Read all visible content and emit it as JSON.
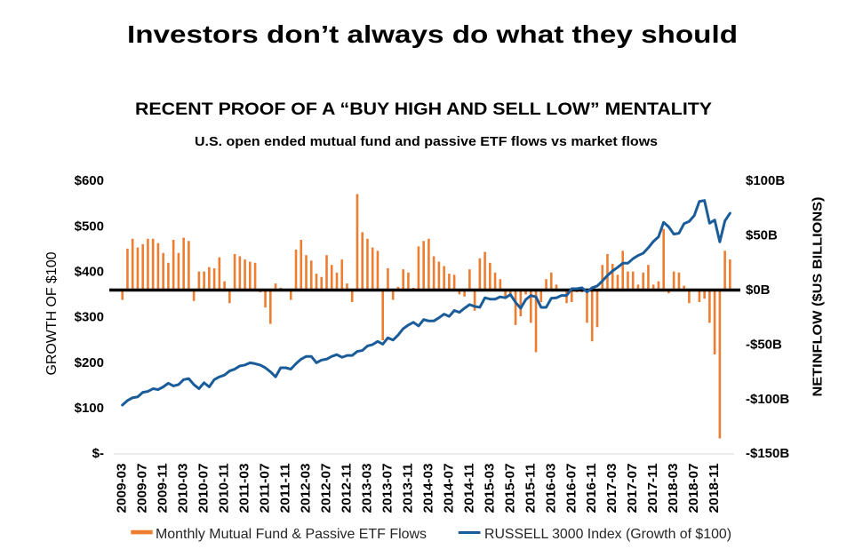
{
  "page": {
    "title": "Investors don’t always do what they should"
  },
  "chart_data": {
    "type": "bar",
    "title": "RECENT PROOF OF A “BUY HIGH AND SELL LOW” MENTALITY",
    "subtitle": "U.S. open ended mutual fund and passive ETF flows vs market flows",
    "xlabel": "",
    "grid": false,
    "categories": [
      "2009-03",
      "2009-04",
      "2009-05",
      "2009-06",
      "2009-07",
      "2009-08",
      "2009-09",
      "2009-10",
      "2009-11",
      "2009-12",
      "2010-01",
      "2010-02",
      "2010-03",
      "2010-04",
      "2010-05",
      "2010-06",
      "2010-07",
      "2010-08",
      "2010-09",
      "2010-10",
      "2010-11",
      "2010-12",
      "2011-01",
      "2011-02",
      "2011-03",
      "2011-04",
      "2011-05",
      "2011-06",
      "2011-07",
      "2011-08",
      "2011-09",
      "2011-10",
      "2011-11",
      "2011-12",
      "2012-01",
      "2012-02",
      "2012-03",
      "2012-04",
      "2012-05",
      "2012-06",
      "2012-07",
      "2012-08",
      "2012-09",
      "2012-10",
      "2012-11",
      "2012-12",
      "2013-01",
      "2013-02",
      "2013-03",
      "2013-04",
      "2013-05",
      "2013-06",
      "2013-07",
      "2013-08",
      "2013-09",
      "2013-10",
      "2013-11",
      "2013-12",
      "2014-01",
      "2014-02",
      "2014-03",
      "2014-04",
      "2014-05",
      "2014-06",
      "2014-07",
      "2014-08",
      "2014-09",
      "2014-10",
      "2014-11",
      "2014-12",
      "2015-01",
      "2015-02",
      "2015-03",
      "2015-04",
      "2015-05",
      "2015-06",
      "2015-07",
      "2015-08",
      "2015-09",
      "2015-10",
      "2015-11",
      "2015-12",
      "2016-01",
      "2016-02",
      "2016-03",
      "2016-04",
      "2016-05",
      "2016-06",
      "2016-07",
      "2016-08",
      "2016-09",
      "2016-10",
      "2016-11",
      "2016-12",
      "2017-01",
      "2017-02",
      "2017-03",
      "2017-04",
      "2017-05",
      "2017-06",
      "2017-07",
      "2017-08",
      "2017-09",
      "2017-10",
      "2017-11",
      "2017-12",
      "2018-01",
      "2018-02",
      "2018-03",
      "2018-04",
      "2018-05",
      "2018-06",
      "2018-07",
      "2018-08",
      "2018-09",
      "2018-10",
      "2018-11",
      "2018-12",
      "2019-01",
      "2019-02"
    ],
    "x_tick_labels": [
      "2009-03",
      "2009-07",
      "2009-11",
      "2010-03",
      "2010-07",
      "2010-11",
      "2011-03",
      "2011-07",
      "2011-11",
      "2012-03",
      "2012-07",
      "2012-11",
      "2013-03",
      "2013-07",
      "2013-11",
      "2014-03",
      "2014-07",
      "2014-11",
      "2015-03",
      "2015-07",
      "2015-11",
      "2016-03",
      "2016-07",
      "2016-11",
      "2017-03",
      "2017-07",
      "2017-11",
      "2018-03",
      "2018-07",
      "2018-11"
    ],
    "x_tick_every_n_months": 4,
    "y_left": {
      "label": "GROWTH OF $100",
      "range": [
        0,
        600
      ],
      "ticks": [
        600,
        500,
        400,
        300,
        200,
        100,
        0
      ],
      "tick_labels": [
        "$600",
        "$500",
        "$400",
        "$300",
        "$200",
        "$100",
        "$-"
      ]
    },
    "y_right": {
      "label": "NETINFLOW ($US BILLIONS)",
      "range": [
        -150,
        100
      ],
      "ticks": [
        100,
        50,
        0,
        -50,
        -100,
        -150
      ],
      "tick_labels": [
        "$100B",
        "$50B",
        "$0B",
        "-$50B",
        "-$100B",
        "-$150B"
      ]
    },
    "reference_line": {
      "axis": "right",
      "value": 0,
      "color": "#000000"
    },
    "axis_line_color": "#D9D9D9",
    "legend": {
      "position": "bottom"
    },
    "series": [
      {
        "name": "Monthly Mutual Fund & Passive ETF Flows",
        "type": "bar",
        "axis": "right",
        "unit": "$B",
        "color": "#ED7D31",
        "values": [
          -9,
          38,
          47,
          39,
          42,
          47,
          47,
          43,
          34,
          25,
          46,
          34,
          48,
          45,
          -10,
          17,
          17,
          21,
          20,
          30,
          8,
          -12,
          33,
          31,
          28,
          26,
          25,
          -2,
          -16,
          -31,
          6,
          2,
          -1,
          -9,
          37,
          46,
          32,
          27,
          15,
          12,
          32,
          23,
          16,
          28,
          6,
          -11,
          88,
          53,
          47,
          39,
          36,
          -46,
          20,
          -9,
          3,
          19,
          16,
          2,
          40,
          45,
          47,
          31,
          26,
          22,
          15,
          14,
          -4,
          -6,
          19,
          -19,
          29,
          35,
          25,
          16,
          10,
          -6,
          -4,
          -32,
          -24,
          -4,
          -30,
          -57,
          -11,
          10,
          16,
          5,
          -1,
          -12,
          -11,
          -2,
          -2,
          -30,
          -47,
          -34,
          23,
          33,
          24,
          14,
          36,
          17,
          17,
          5,
          16,
          23,
          5,
          8,
          56,
          -3,
          17,
          16,
          4,
          -12,
          -1,
          -11,
          -8,
          -30,
          -59,
          -136,
          36,
          28
        ]
      },
      {
        "name": "RUSSELL 3000 Index (Growth of $100)",
        "type": "line",
        "axis": "left",
        "unit": "$",
        "color": "#1A5C99",
        "values": [
          107,
          117,
          123,
          125,
          135,
          137,
          143,
          141,
          147,
          155,
          149,
          152,
          163,
          165,
          152,
          143,
          156,
          147,
          163,
          169,
          173,
          182,
          186,
          193,
          195,
          200,
          198,
          195,
          189,
          180,
          169,
          189,
          189,
          186,
          198,
          208,
          214,
          214,
          200,
          206,
          208,
          214,
          218,
          212,
          216,
          216,
          225,
          227,
          237,
          240,
          247,
          241,
          255,
          250,
          261,
          275,
          283,
          289,
          281,
          295,
          292,
          292,
          299,
          307,
          302,
          315,
          311,
          320,
          328,
          324,
          322,
          343,
          340,
          340,
          345,
          343,
          350,
          333,
          320,
          339,
          348,
          345,
          322,
          322,
          342,
          343,
          348,
          348,
          363,
          363,
          365,
          356,
          365,
          369,
          380,
          392,
          402,
          410,
          419,
          419,
          429,
          436,
          441,
          453,
          467,
          477,
          509,
          499,
          483,
          485,
          506,
          511,
          524,
          555,
          557,
          507,
          514,
          466,
          512,
          529
        ]
      }
    ]
  }
}
